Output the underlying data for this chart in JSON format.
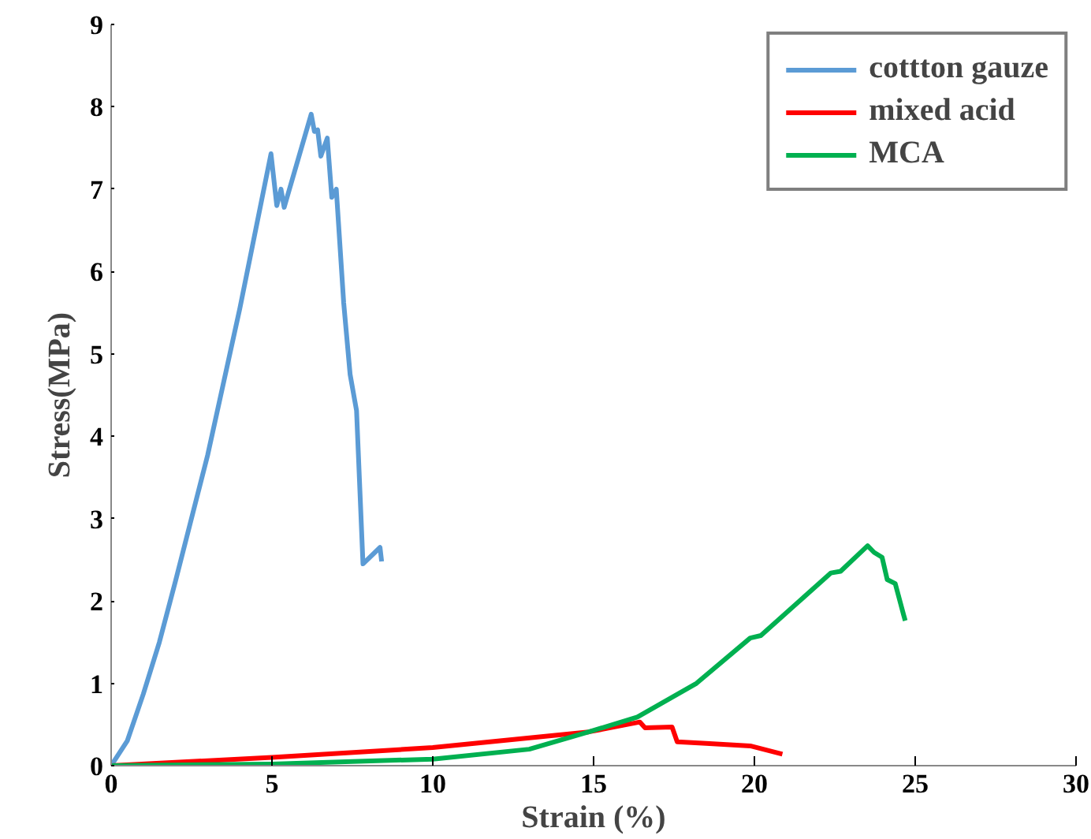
{
  "chart_data": {
    "type": "line",
    "xlabel": "Strain (%)",
    "ylabel": "Stress(MPa)",
    "xlim": [
      0,
      30
    ],
    "ylim": [
      0,
      9
    ],
    "xticks": [
      0,
      5,
      10,
      15,
      20,
      25,
      30
    ],
    "yticks": [
      0,
      1,
      2,
      3,
      4,
      5,
      6,
      7,
      8,
      9
    ],
    "grid": false,
    "legend": "top right",
    "marker": "none",
    "line_style": "solid",
    "series": [
      {
        "name": "cottton gauze",
        "color": "#5b9bd5",
        "x": [
          0,
          0.5,
          1.0,
          1.5,
          2.0,
          3.0,
          4.0,
          4.97,
          5.15,
          5.28,
          5.38,
          6.22,
          6.32,
          6.42,
          6.52,
          6.72,
          6.86,
          7.0,
          7.23,
          7.43,
          7.63,
          7.83,
          8.36,
          8.41
        ],
        "values": [
          0,
          0.3,
          0.87,
          1.5,
          2.24,
          3.77,
          5.55,
          7.43,
          6.8,
          7.0,
          6.78,
          7.91,
          7.7,
          7.72,
          7.4,
          7.62,
          6.9,
          7.0,
          5.62,
          4.75,
          4.31,
          2.45,
          2.65,
          2.48
        ]
      },
      {
        "name": "mixed acid",
        "color": "#ff0000",
        "x": [
          0,
          5,
          10,
          14.85,
          16.44,
          16.6,
          17.44,
          17.6,
          18.5,
          19.87,
          20.87
        ],
        "values": [
          0,
          0.1,
          0.22,
          0.41,
          0.53,
          0.46,
          0.47,
          0.29,
          0.27,
          0.24,
          0.14
        ]
      },
      {
        "name": "MCA",
        "color": "#00b050",
        "x": [
          0,
          5,
          10,
          13,
          14.85,
          16.36,
          18.2,
          19.87,
          20.2,
          22.38,
          22.68,
          23.52,
          23.72,
          23.97,
          24.13,
          24.38,
          24.64,
          24.69
        ],
        "values": [
          0,
          0.02,
          0.08,
          0.2,
          0.41,
          0.59,
          1.0,
          1.55,
          1.58,
          2.34,
          2.36,
          2.67,
          2.59,
          2.53,
          2.26,
          2.21,
          1.83,
          1.76
        ]
      }
    ]
  }
}
